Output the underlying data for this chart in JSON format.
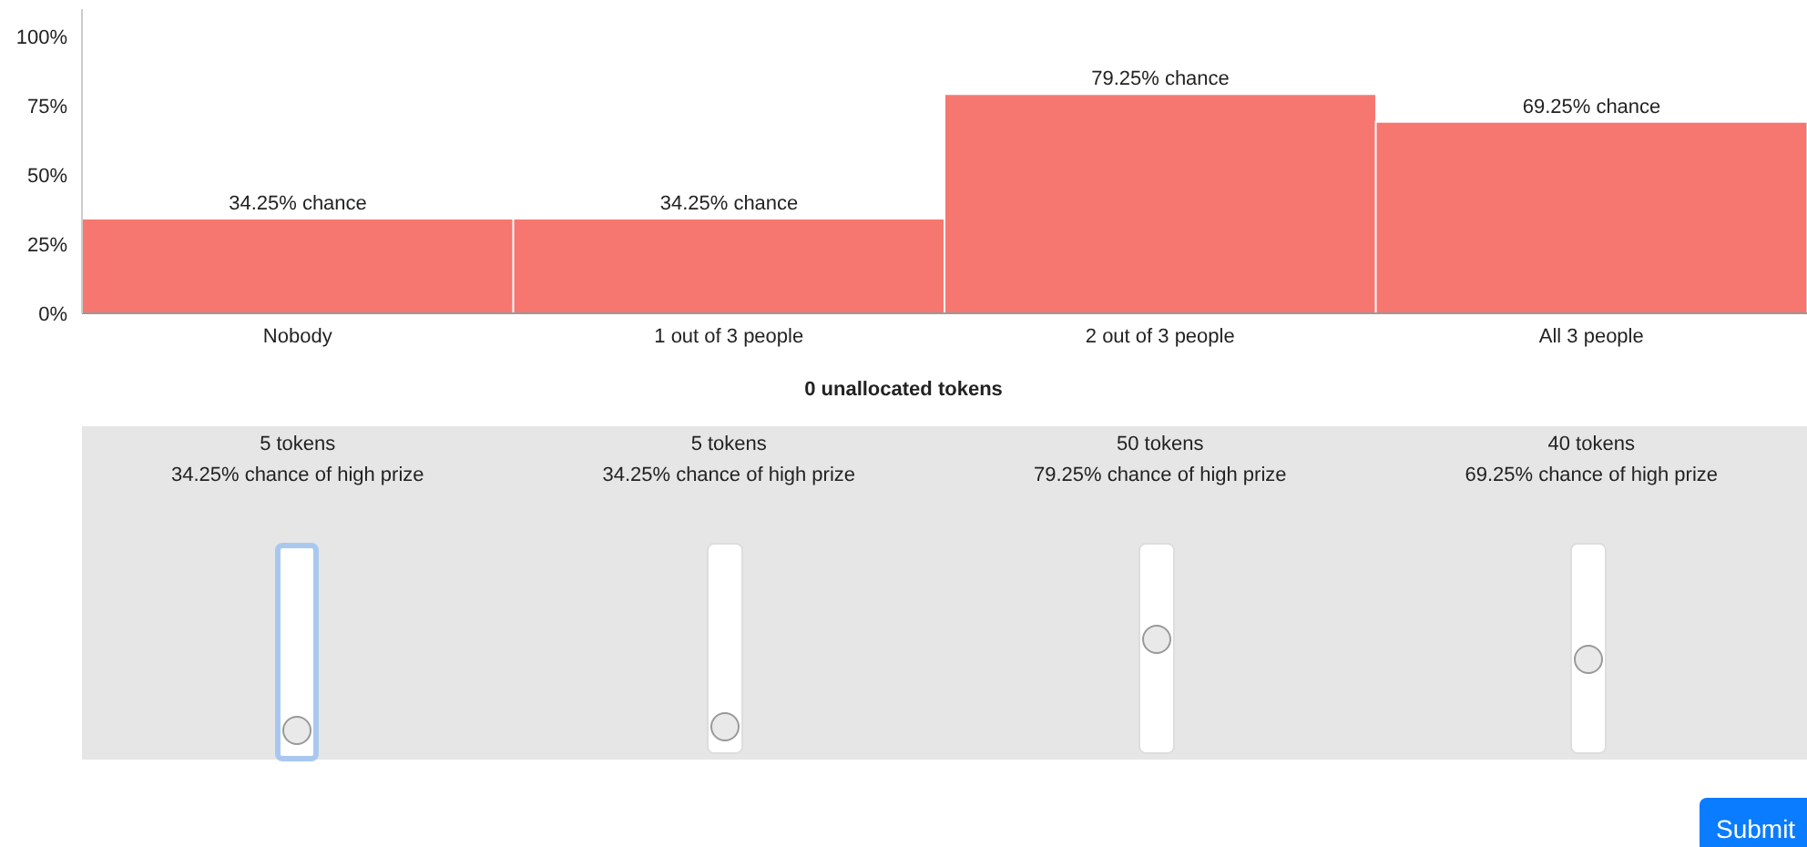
{
  "chart_data": {
    "type": "bar",
    "categories": [
      "Nobody",
      "1 out of 3 people",
      "2 out of 3 people",
      "All 3 people"
    ],
    "values": [
      34.25,
      34.25,
      79.25,
      69.25
    ],
    "value_labels": [
      "34.25% chance",
      "34.25% chance",
      "79.25% chance",
      "69.25% chance"
    ],
    "color": "#f67770",
    "ylim": [
      0,
      110
    ],
    "yticks": [
      {
        "value": 0,
        "label": "0%"
      },
      {
        "value": 25,
        "label": "25%"
      },
      {
        "value": 50,
        "label": "50%"
      },
      {
        "value": 75,
        "label": "75%"
      },
      {
        "value": 100,
        "label": "100%"
      }
    ],
    "grid": false,
    "legend": false,
    "annotations": [
      "0 unallocated tokens",
      "5 tokens",
      "34.25% chance of high prize",
      "5 tokens",
      "34.25% chance of high prize",
      "50 tokens",
      "79.25% chance of high prize",
      "40 tokens",
      "69.25% chance of high prize",
      "Submit"
    ]
  }
}
